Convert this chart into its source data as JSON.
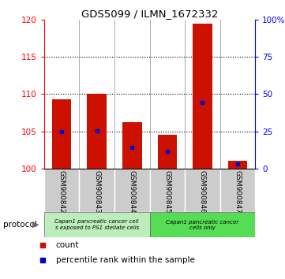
{
  "title": "GDS5099 / ILMN_1672332",
  "samples": [
    "GSM900842",
    "GSM900843",
    "GSM900844",
    "GSM900845",
    "GSM900846",
    "GSM900847"
  ],
  "count_values": [
    109.3,
    110.0,
    106.3,
    104.6,
    119.5,
    101.1
  ],
  "count_base": 100.0,
  "percentile_values": [
    25.0,
    25.2,
    14.5,
    11.5,
    44.5,
    3.5
  ],
  "ylim_left": [
    100,
    120
  ],
  "ylim_right": [
    0,
    100
  ],
  "yticks_left": [
    100,
    105,
    110,
    115,
    120
  ],
  "yticks_right": [
    0,
    25,
    50,
    75,
    100
  ],
  "ytick_labels_right": [
    "0",
    "25",
    "50",
    "75",
    "100%"
  ],
  "bar_color": "#cc1100",
  "percentile_color": "#0000cc",
  "grid_lines": [
    105,
    110,
    115
  ],
  "protocol_groups": [
    {
      "label": "Capan1 pancreatic cancer cell\ns exposed to PS1 stellate cells",
      "n_samples": 3,
      "color": "#bbeebb"
    },
    {
      "label": "Capan1 pancreatic cancer\ncells only",
      "n_samples": 3,
      "color": "#55dd55"
    }
  ],
  "legend_items": [
    {
      "color": "#cc1100",
      "label": "count"
    },
    {
      "color": "#0000cc",
      "label": "percentile rank within the sample"
    }
  ],
  "bar_width": 0.55,
  "sample_bg_color": "#cccccc"
}
